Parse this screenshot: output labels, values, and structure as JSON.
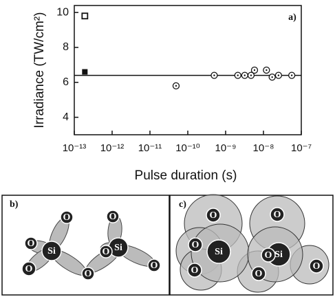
{
  "chart_data": {
    "type": "scatter",
    "xscale": "log",
    "xlabel": "Pulse duration (s)",
    "ylabel": "Irradiance (TW/cm²)",
    "annotation": "a)",
    "xlim": [
      1e-13,
      1e-07
    ],
    "ylim": [
      3,
      10.4
    ],
    "xticks": [
      {
        "value": 1e-13,
        "label": "10⁻¹³"
      },
      {
        "value": 1e-12,
        "label": "10⁻¹²"
      },
      {
        "value": 1e-11,
        "label": "10⁻¹¹"
      },
      {
        "value": 1e-10,
        "label": "10⁻¹⁰"
      },
      {
        "value": 1e-09,
        "label": "10⁻⁹"
      },
      {
        "value": 1e-08,
        "label": "10⁻⁸"
      },
      {
        "value": 1e-07,
        "label": "10⁻⁷"
      }
    ],
    "yticks": [
      4,
      6,
      8,
      10
    ],
    "reference_line": 6.4,
    "series": [
      {
        "marker": "open-square",
        "x": [
          1.9e-13
        ],
        "values": [
          9.8
        ]
      },
      {
        "marker": "filled-square",
        "x": [
          1.9e-13
        ],
        "values": [
          6.6
        ]
      },
      {
        "marker": "dotted-circle",
        "x": [
          4.9e-11,
          5e-10,
          2.1e-09,
          3.2e-09,
          4.7e-09,
          5.8e-09,
          1.2e-08,
          1.7e-08,
          2.5e-08,
          5.6e-08
        ],
        "values": [
          5.8,
          6.4,
          6.4,
          6.4,
          6.4,
          6.7,
          6.7,
          6.3,
          6.4,
          6.4
        ]
      }
    ]
  },
  "panels": [
    {
      "label": "b)",
      "atoms": [
        "Si",
        "Si",
        "O",
        "O",
        "O",
        "O",
        "O",
        "O",
        "O"
      ]
    },
    {
      "label": "c)",
      "atoms": [
        "Si",
        "Si",
        "O",
        "O",
        "O",
        "O",
        "O",
        "O",
        "O"
      ]
    }
  ]
}
